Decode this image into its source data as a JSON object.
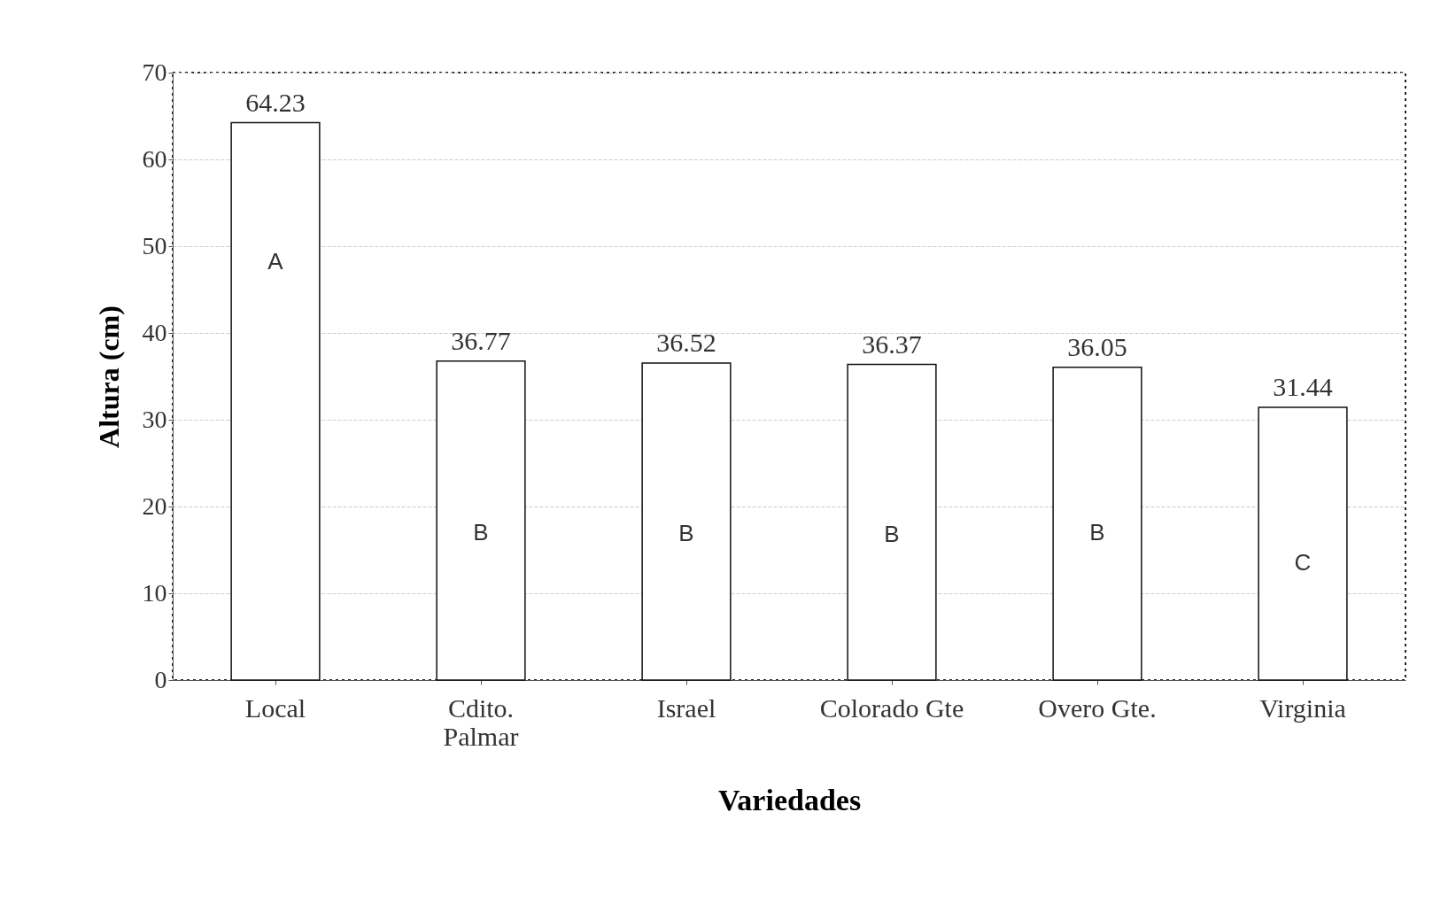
{
  "chart_data": {
    "type": "bar",
    "xlabel": "Variedades",
    "ylabel": "Altura (cm)",
    "categories": [
      "Local",
      "Cdito.\nPalmar",
      "Israel",
      "Colorado Gte",
      "Overo Gte.",
      "Virginia"
    ],
    "values": [
      64.23,
      36.77,
      36.52,
      36.37,
      36.05,
      31.44
    ],
    "color": "#ffffff",
    "data_labels": true,
    "ylim": [
      0,
      70
    ],
    "yticks": [
      0,
      10,
      20,
      30,
      40,
      50,
      60,
      70
    ],
    "grid": "y",
    "annotations": [
      "A",
      "B",
      "B",
      "B",
      "B",
      "C"
    ]
  }
}
